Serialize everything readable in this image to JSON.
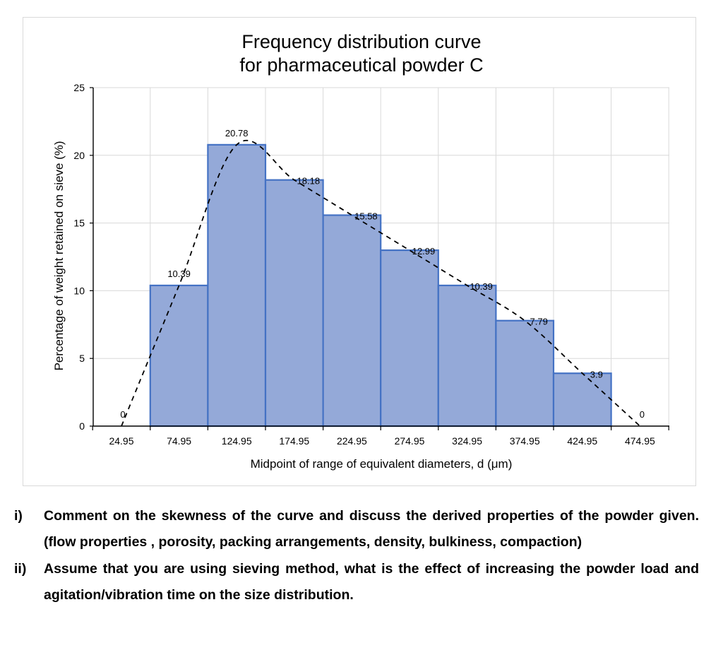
{
  "chart_data": {
    "type": "bar",
    "title_lines": [
      "Frequency distribution curve",
      "for pharmaceutical powder C"
    ],
    "xlabel": "Midpoint of range of equivalent diameters, d (μm)",
    "ylabel": "Percentage of weight retained on sieve (%)",
    "ylim": [
      0,
      25
    ],
    "yticks": [
      0,
      5,
      10,
      15,
      20,
      25
    ],
    "xtick_labels": [
      "24.95",
      "74.95",
      "124.95",
      "174.95",
      "224.95",
      "274.95",
      "324.95",
      "374.95",
      "424.95",
      "474.95"
    ],
    "categories": [
      "74.95",
      "124.95",
      "174.95",
      "224.95",
      "274.95",
      "324.95",
      "374.95",
      "424.95"
    ],
    "values": [
      10.39,
      20.78,
      18.18,
      15.58,
      12.99,
      10.39,
      7.79,
      3.9
    ],
    "bar_labels": [
      "10.39",
      "20.78",
      "18.18",
      "15.58",
      "12.99",
      "10.39",
      "7.79",
      "3.9"
    ],
    "curve": {
      "style": "dashed",
      "x": [
        24.95,
        74.95,
        124.95,
        174.95,
        224.95,
        274.95,
        324.95,
        374.95,
        424.95,
        474.95
      ],
      "y": [
        0,
        10.39,
        20.78,
        18.18,
        15.58,
        12.99,
        10.39,
        7.79,
        3.9,
        0
      ],
      "end_labels": [
        "0",
        "0"
      ]
    },
    "grid": true,
    "bar_color": "#94a9d8",
    "bar_edge_color": "#4472c4",
    "legend": "none"
  },
  "questions": [
    {
      "number": "i)",
      "text": "Comment on the skewness of the curve and discuss the derived properties of the powder given. (flow properties , porosity, packing arrangements, density, bulkiness, compaction)"
    },
    {
      "number": "ii)",
      "text": "Assume that you are using sieving method, what is the effect of increasing the powder load and agitation/vibration time on the size distribution."
    }
  ]
}
